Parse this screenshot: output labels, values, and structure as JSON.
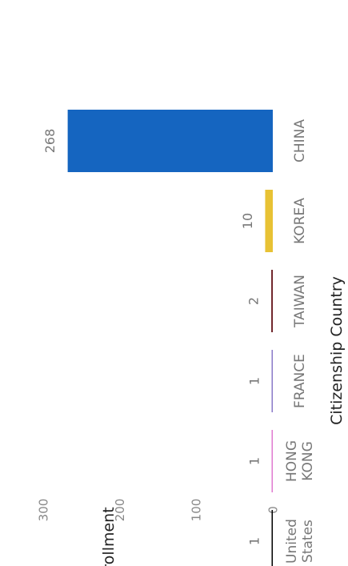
{
  "chart_data": {
    "type": "bar",
    "xlabel": "Citizenship Country",
    "ylabel": "Enrollment",
    "ylim": [
      0,
      300
    ],
    "yticks": [
      "0",
      "100",
      "200",
      "300"
    ],
    "categories": [
      {
        "label": [
          "CHINA"
        ]
      },
      {
        "label": [
          "KOREA"
        ]
      },
      {
        "label": [
          "TAIWAN"
        ]
      },
      {
        "label": [
          "FRANCE"
        ]
      },
      {
        "label": [
          "HONG",
          "KONG"
        ]
      },
      {
        "label": [
          "United",
          "States"
        ]
      }
    ],
    "values": [
      268,
      10,
      2,
      1,
      1,
      1
    ],
    "data_labels": [
      "268",
      "10",
      "2",
      "1",
      "1",
      "1"
    ],
    "colors": [
      "#1565c0",
      "#e8c234",
      "#6b1f24",
      "#8a79c8",
      "#e07ad0",
      "#000000"
    ],
    "grid": false,
    "legend": "none",
    "orientation": "rotated-90-clockwise"
  }
}
